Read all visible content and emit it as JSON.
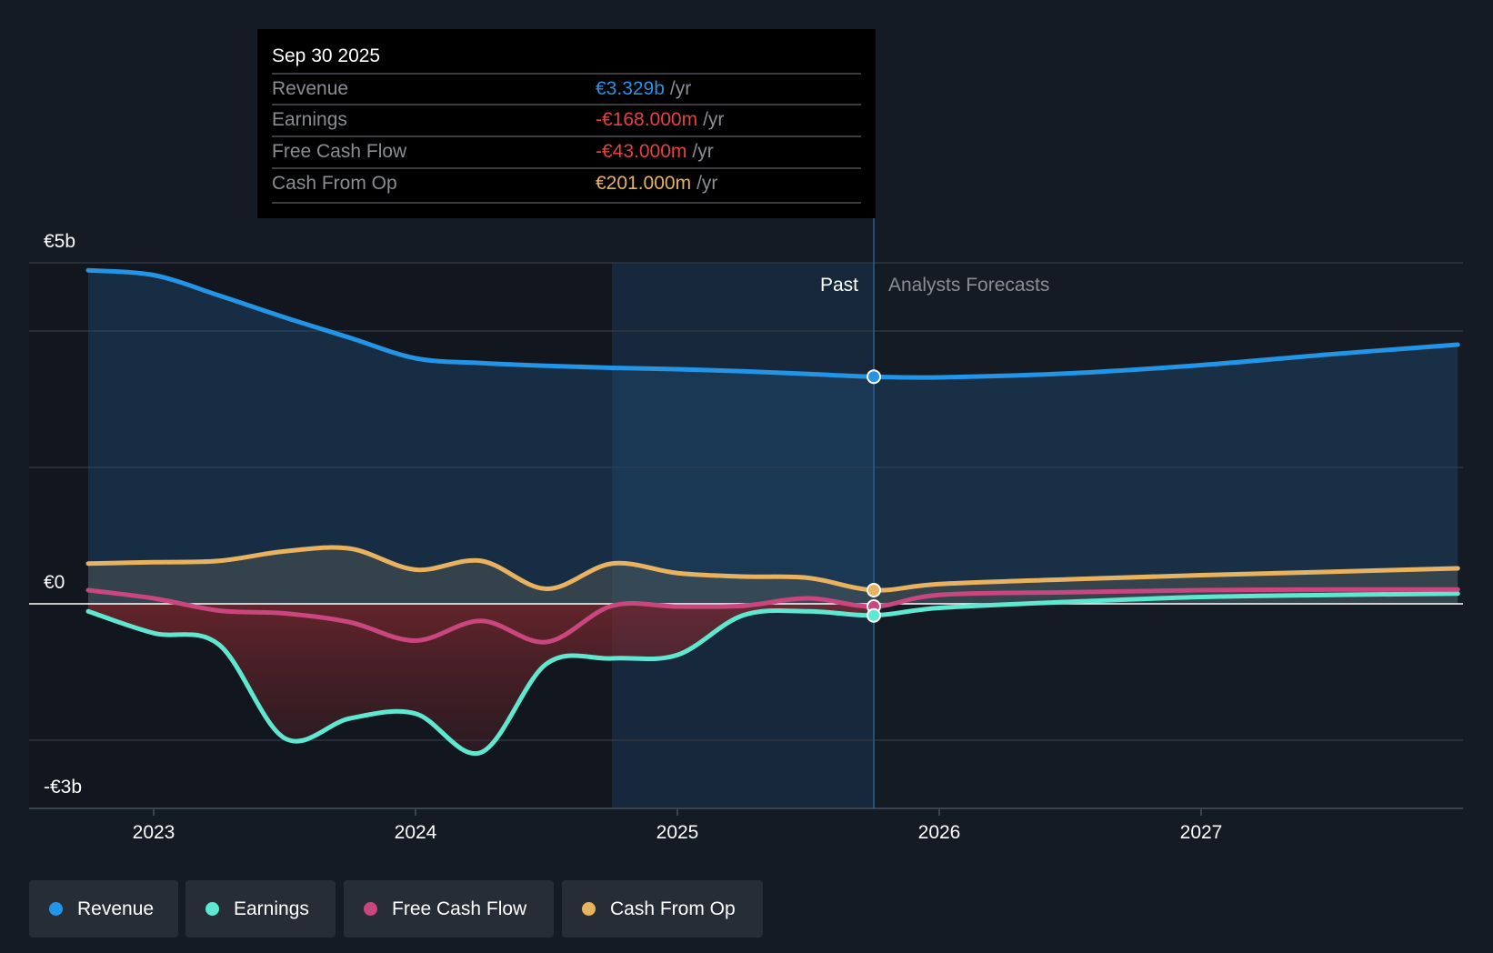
{
  "tooltip": {
    "date": "Sep 30 2025",
    "unit": "/yr",
    "rows": [
      {
        "label": "Revenue",
        "value": "€3.329b",
        "color": "#2394e6"
      },
      {
        "label": "Earnings",
        "value": "-€168.000m",
        "color": "#e5403f"
      },
      {
        "label": "Free Cash Flow",
        "value": "-€43.000m",
        "color": "#e5403f"
      },
      {
        "label": "Cash From Op",
        "value": "€201.000m",
        "color": "#e9b260"
      }
    ]
  },
  "labels": {
    "past": "Past",
    "forecast": "Analysts Forecasts"
  },
  "legend": [
    {
      "label": "Revenue",
      "color": "#2394e6"
    },
    {
      "label": "Earnings",
      "color": "#5ee8d0"
    },
    {
      "label": "Free Cash Flow",
      "color": "#c9467f"
    },
    {
      "label": "Cash From Op",
      "color": "#e9b260"
    }
  ],
  "chart_data": {
    "type": "line",
    "title": "",
    "xlabel": "",
    "ylabel": "",
    "xlim": [
      2022.55,
      2027.98
    ],
    "ylim": [
      -3,
      5
    ],
    "y_tick_labels": [
      {
        "value": 5,
        "label": "€5b"
      },
      {
        "value": 0,
        "label": "€0"
      },
      {
        "value": -3,
        "label": "-€3b"
      }
    ],
    "gridlines": [
      5,
      4,
      2,
      0,
      -2
    ],
    "x_ticks": [
      {
        "value": 2023,
        "label": "2023"
      },
      {
        "value": 2024,
        "label": "2024"
      },
      {
        "value": 2025,
        "label": "2025"
      },
      {
        "value": 2026,
        "label": "2026"
      },
      {
        "value": 2027,
        "label": "2027"
      }
    ],
    "past_boundary": 2025.75,
    "highlight_start": 2024.75,
    "x": [
      2022.75,
      2023.0,
      2023.25,
      2023.5,
      2023.75,
      2024.0,
      2024.25,
      2024.5,
      2024.75,
      2025.0,
      2025.25,
      2025.5,
      2025.75,
      2026.0,
      2026.5,
      2027.0,
      2027.5,
      2027.98
    ],
    "series": [
      {
        "name": "Revenue",
        "color": "#2394e6",
        "values": [
          4.89,
          4.82,
          4.52,
          4.2,
          3.9,
          3.6,
          3.53,
          3.49,
          3.46,
          3.44,
          3.41,
          3.37,
          3.33,
          3.32,
          3.38,
          3.5,
          3.66,
          3.8
        ]
      },
      {
        "name": "Earnings",
        "color": "#5ee8d0",
        "values": [
          -0.11,
          -0.43,
          -0.6,
          -1.97,
          -1.68,
          -1.61,
          -2.18,
          -0.88,
          -0.8,
          -0.75,
          -0.17,
          -0.11,
          -0.17,
          -0.06,
          0.03,
          0.1,
          0.13,
          0.15
        ]
      },
      {
        "name": "Free Cash Flow",
        "color": "#c9467f",
        "values": [
          0.2,
          0.08,
          -0.1,
          -0.14,
          -0.27,
          -0.54,
          -0.25,
          -0.56,
          -0.03,
          -0.04,
          -0.03,
          0.08,
          -0.04,
          0.13,
          0.17,
          0.2,
          0.21,
          0.21
        ]
      },
      {
        "name": "Cash From Op",
        "color": "#e9b260",
        "values": [
          0.59,
          0.61,
          0.63,
          0.77,
          0.81,
          0.5,
          0.63,
          0.22,
          0.59,
          0.45,
          0.4,
          0.38,
          0.2,
          0.29,
          0.36,
          0.42,
          0.47,
          0.52
        ]
      }
    ]
  }
}
